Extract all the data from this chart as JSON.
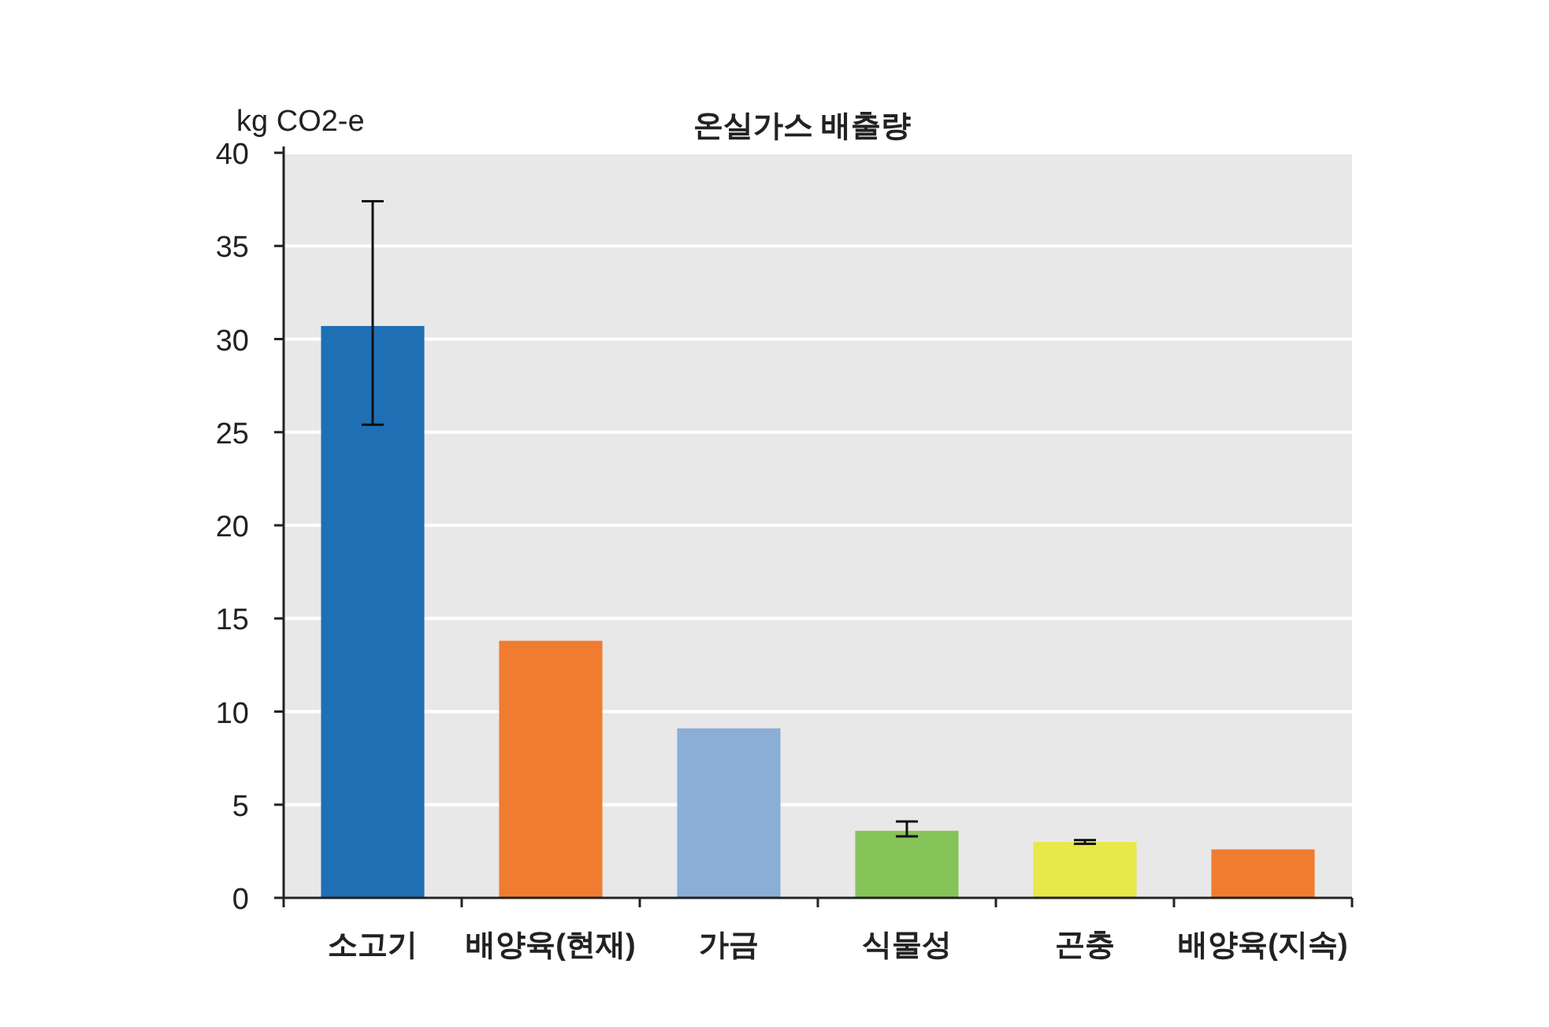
{
  "chart_data": {
    "type": "bar",
    "title": "온실가스 배출량",
    "ylabel": "kg CO2-e",
    "categories": [
      "소고기",
      "배양육(현재)",
      "가금",
      "식물성",
      "곤충",
      "배양육(지속)"
    ],
    "values": [
      30.7,
      13.8,
      9.1,
      3.6,
      3.0,
      2.6
    ],
    "colors": [
      "#1f6fb5",
      "#f07c30",
      "#8aaed6",
      "#86c45a",
      "#e8e84a",
      "#f07c30"
    ],
    "errors": [
      [
        25.4,
        37.4
      ],
      null,
      null,
      [
        3.3,
        4.1
      ],
      [
        2.9,
        3.1
      ],
      null
    ],
    "ylim": [
      0,
      40
    ],
    "yticks": [
      0,
      5,
      10,
      15,
      20,
      25,
      30,
      35,
      40
    ],
    "grid": "y"
  }
}
